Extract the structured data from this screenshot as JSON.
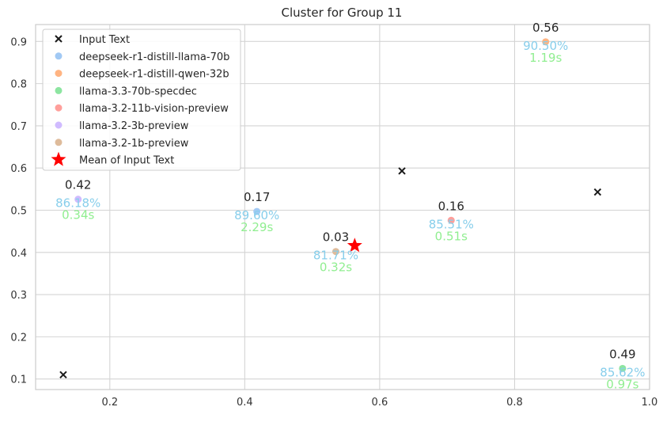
{
  "chart_data": {
    "type": "scatter",
    "title": "Cluster for Group 11",
    "xlabel": "",
    "ylabel": "",
    "xlim": [
      0.09,
      1.0
    ],
    "ylim": [
      0.075,
      0.94
    ],
    "xticks": [
      0.2,
      0.4,
      0.6,
      0.8,
      1.0
    ],
    "xtick_labels": [
      "0.2",
      "0.4",
      "0.6",
      "0.8",
      "1.0"
    ],
    "yticks": [
      0.1,
      0.2,
      0.3,
      0.4,
      0.5,
      0.6,
      0.7,
      0.8,
      0.9
    ],
    "ytick_labels": [
      "0.1",
      "0.2",
      "0.3",
      "0.4",
      "0.5",
      "0.6",
      "0.7",
      "0.8",
      "0.9"
    ],
    "grid": true,
    "legend_position": "top-left",
    "input_text": {
      "name": "Input Text",
      "marker": "x",
      "color": "#1a1a1a",
      "points": [
        {
          "x": 0.131,
          "y": 0.11
        },
        {
          "x": 0.633,
          "y": 0.593
        },
        {
          "x": 0.923,
          "y": 0.543
        }
      ]
    },
    "models": [
      {
        "name": "deepseek-r1-distill-llama-70b",
        "color": "#a1c9f4",
        "x": 0.418,
        "y": 0.497,
        "top_label": "0.17",
        "accuracy": "89.60%",
        "time": "2.29s"
      },
      {
        "name": "deepseek-r1-distill-qwen-32b",
        "color": "#ffb482",
        "x": 0.846,
        "y": 0.899,
        "top_label": "0.56",
        "accuracy": "90.50%",
        "time": "1.19s"
      },
      {
        "name": "llama-3.3-70b-specdec",
        "color": "#8de5a1",
        "x": 0.96,
        "y": 0.125,
        "top_label": "0.49",
        "accuracy": "85.62%",
        "time": "0.97s"
      },
      {
        "name": "llama-3.2-11b-vision-preview",
        "color": "#ff9f9b",
        "x": 0.706,
        "y": 0.476,
        "top_label": "0.16",
        "accuracy": "85.51%",
        "time": "0.51s"
      },
      {
        "name": "llama-3.2-3b-preview",
        "color": "#d0bbff",
        "x": 0.153,
        "y": 0.526,
        "top_label": "0.42",
        "accuracy": "86.18%",
        "time": "0.34s"
      },
      {
        "name": "llama-3.2-1b-preview",
        "color": "#debb9b",
        "x": 0.535,
        "y": 0.402,
        "top_label": "0.03",
        "accuracy": "81.71%",
        "time": "0.32s"
      }
    ],
    "mean": {
      "name": "Mean of Input Text",
      "marker": "star",
      "color": "#ff0000",
      "x": 0.563,
      "y": 0.416
    },
    "accuracy_color": "#87ceeb",
    "time_color": "#90ee90"
  }
}
